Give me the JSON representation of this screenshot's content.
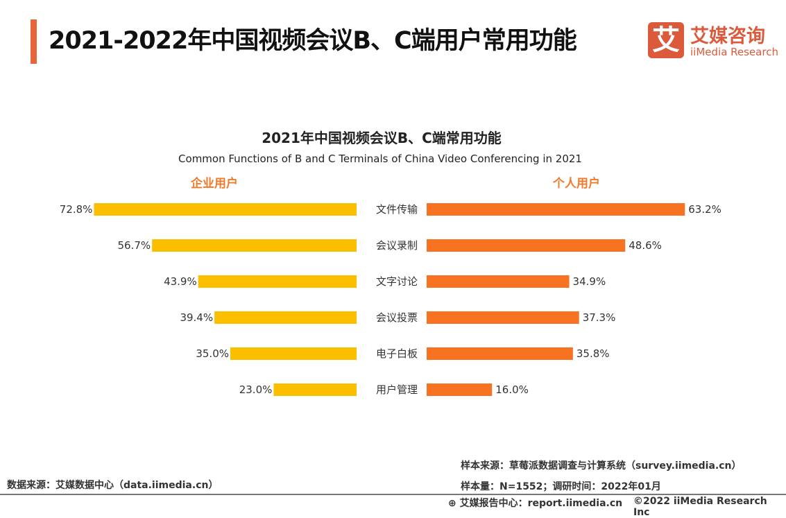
{
  "header": {
    "title": "2021-2022年中国视频会议B、C端用户常用功能",
    "logo_cn": "艾媒咨询",
    "logo_en": "iiMedia Research",
    "logo_mark": "艾"
  },
  "chart_data": {
    "type": "bar",
    "title": "2021年中国视频会议B、C端常用功能",
    "subtitle": "Common Functions of B and C Terminals of China Video Conferencing in 2021",
    "categories": [
      "文件传输",
      "会议录制",
      "文字讨论",
      "会议投票",
      "电子白板",
      "用户管理"
    ],
    "series": [
      {
        "name": "企业用户",
        "color": "#fbbf00",
        "values": [
          72.8,
          56.7,
          43.9,
          39.4,
          35.0,
          23.0
        ]
      },
      {
        "name": "个人用户",
        "color": "#f77321",
        "values": [
          63.2,
          48.6,
          34.9,
          37.3,
          35.8,
          16.0
        ]
      }
    ],
    "unit": "%"
  },
  "footer": {
    "source_left": "数据来源：艾媒数据中心（data.iimedia.cn）",
    "sample_source": "样本来源：草莓派数据调查与计算系统（survey.iimedia.cn）",
    "sample_size": "样本量：N=1552；调研时间：2022年01月",
    "report": "艾媒报告中心：report.iimedia.cn",
    "copyright": "©2022  iiMedia Research  Inc"
  }
}
